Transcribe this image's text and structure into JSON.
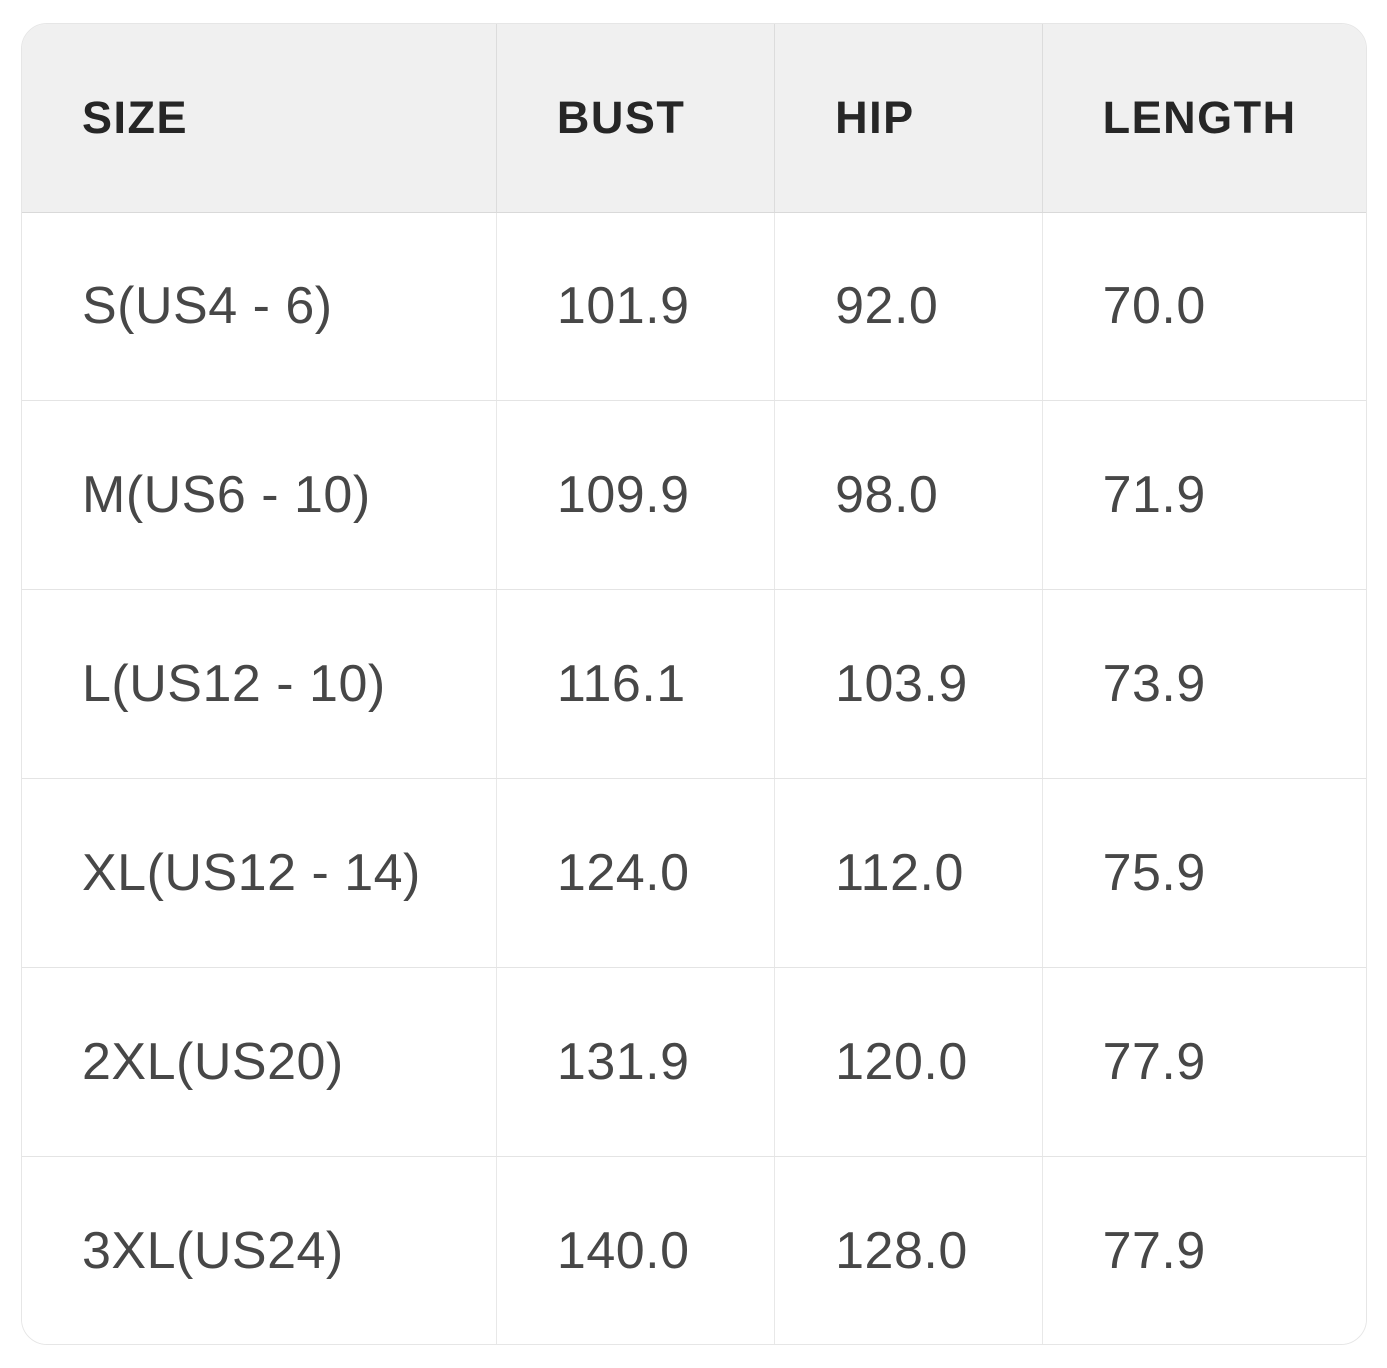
{
  "size_chart": {
    "columns": [
      {
        "label": "SIZE"
      },
      {
        "label": "BUST"
      },
      {
        "label": "HIP"
      },
      {
        "label": "LENGTH"
      }
    ],
    "rows": [
      {
        "cells": [
          "S(US4 - 6)",
          "101.9",
          "92.0",
          "70.0"
        ]
      },
      {
        "cells": [
          "M(US6 - 10)",
          "109.9",
          "98.0",
          "71.9"
        ]
      },
      {
        "cells": [
          "L(US12 - 10)",
          "116.1",
          "103.9",
          "73.9"
        ]
      },
      {
        "cells": [
          "XL(US12 - 14)",
          "124.0",
          "112.0",
          "75.9"
        ]
      },
      {
        "cells": [
          "2XL(US20)",
          "131.9",
          "120.0",
          "77.9"
        ]
      },
      {
        "cells": [
          "3XL(US24)",
          "140.0",
          "128.0",
          "77.9"
        ]
      }
    ],
    "colors": {
      "header_background": "#f0f0f0",
      "header_text": "#262626",
      "body_text": "#474747",
      "row_border": "#e4e4e4",
      "column_border": "#e8e8e8",
      "card_border": "#e6e6e6",
      "card_background": "#ffffff"
    }
  }
}
